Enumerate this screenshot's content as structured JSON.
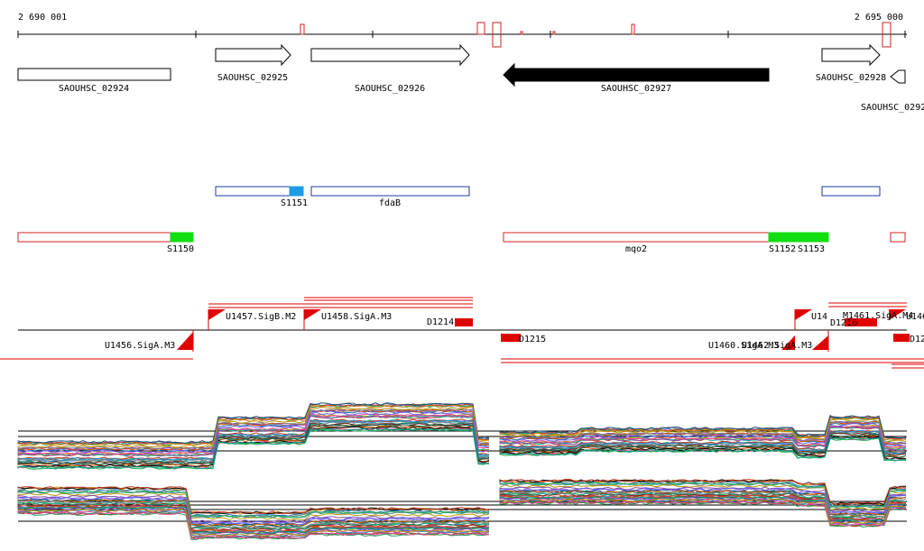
{
  "coordinates": {
    "start": "2 690 001",
    "end": "2 695 000"
  },
  "genes": [
    {
      "id": "SAOUHSC_02924",
      "label": "SAOUHSC_02924",
      "strand": "none"
    },
    {
      "id": "SAOUHSC_02925",
      "label": "SAOUHSC_02925",
      "strand": "+"
    },
    {
      "id": "SAOUHSC_02926",
      "label": "SAOUHSC_02926",
      "strand": "+"
    },
    {
      "id": "SAOUHSC_02927",
      "label": "SAOUHSC_02927",
      "strand": "-",
      "highlighted": true
    },
    {
      "id": "SAOUHSC_02928",
      "label": "SAOUHSC_02928",
      "strand": "+"
    },
    {
      "id": "SAOUHSC_0292x",
      "label": "SAOUHSC_0292",
      "strand": "-"
    }
  ],
  "blue_features": [
    {
      "id": "b1",
      "label": "S1151"
    },
    {
      "id": "b2",
      "label": "fdaB"
    },
    {
      "id": "b3",
      "label": ""
    }
  ],
  "red_features": [
    {
      "id": "r1",
      "label": "S1150"
    },
    {
      "id": "r2",
      "label": "mqo2"
    },
    {
      "id": "r3",
      "label": "S1152"
    },
    {
      "id": "r4",
      "label": "S1153"
    },
    {
      "id": "r5",
      "label": ""
    }
  ],
  "promoters_above": [
    "U1457.SigB.M2",
    "U1458.SigA.M3",
    "D1214",
    "U14",
    "D1216",
    "M1461.SigA.M4",
    "U146"
  ],
  "promoters_below": [
    "U1456.SigA.M3",
    "D1215",
    "U1460.SigA.M3",
    "U1462.SigA.M3",
    "D12"
  ],
  "colors": {
    "axis": "#000000",
    "gene_outline": "#000000",
    "gene_highlight": "#000000",
    "blue_feature": "#1e3a9a",
    "blue_fill": "#1c9ce6",
    "red_feature": "#d42020",
    "green_fill": "#11dd11",
    "promoter": "#e00000"
  }
}
